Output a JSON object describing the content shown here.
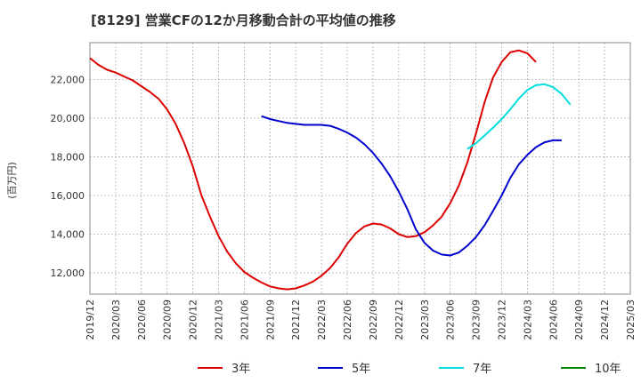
{
  "chart_data": {
    "type": "line",
    "title": "[8129]  営業CFの12か月移動合計の平均値の推移",
    "ylabel": "(百万円)",
    "ylim": [
      10900,
      23900
    ],
    "yticks": [
      12000,
      14000,
      16000,
      18000,
      20000,
      22000
    ],
    "ytick_labels": [
      "12,000",
      "14,000",
      "16,000",
      "18,000",
      "20,000",
      "22,000"
    ],
    "xticks": [
      "2019/12",
      "2020/03",
      "2020/06",
      "2020/09",
      "2020/12",
      "2021/03",
      "2021/06",
      "2021/09",
      "2021/12",
      "2022/03",
      "2022/06",
      "2022/09",
      "2022/12",
      "2023/03",
      "2023/06",
      "2023/09",
      "2023/12",
      "2024/03",
      "2024/06",
      "2024/09",
      "2024/12",
      "2025/03"
    ],
    "x_start": "2019/12",
    "grid": true,
    "legend_position": "bottom",
    "series": [
      {
        "name": "3年",
        "color": "#dd0000",
        "start": "2019/12",
        "values": [
          23100,
          22750,
          22500,
          22350,
          22150,
          21950,
          21650,
          21350,
          21000,
          20450,
          19700,
          18700,
          17500,
          16000,
          14900,
          13900,
          13100,
          12500,
          12050,
          11750,
          11500,
          11300,
          11200,
          11150,
          11200,
          11350,
          11550,
          11850,
          12250,
          12800,
          13500,
          14050,
          14400,
          14550,
          14500,
          14300,
          14000,
          13850,
          13900,
          14100,
          14450,
          14900,
          15600,
          16500,
          17700,
          19200,
          20800,
          22100,
          22900,
          23400,
          23500,
          23350,
          22900
        ]
      },
      {
        "name": "5年",
        "color": "#0000cc",
        "start": "2021/08",
        "values": [
          20100,
          19950,
          19850,
          19750,
          19700,
          19650,
          19650,
          19650,
          19600,
          19450,
          19250,
          19000,
          18650,
          18200,
          17650,
          17000,
          16200,
          15300,
          14250,
          13550,
          13150,
          12950,
          12900,
          13050,
          13400,
          13850,
          14450,
          15200,
          16000,
          16900,
          17600,
          18100,
          18500,
          18750,
          18850,
          18850
        ]
      },
      {
        "name": "7年",
        "color": "#00dddd",
        "start": "2023/08",
        "values": [
          18400,
          18700,
          19100,
          19500,
          19950,
          20450,
          21000,
          21450,
          21700,
          21750,
          21600,
          21250,
          20700
        ]
      },
      {
        "name": "10年",
        "color": "#008800",
        "start": "",
        "values": []
      }
    ]
  }
}
